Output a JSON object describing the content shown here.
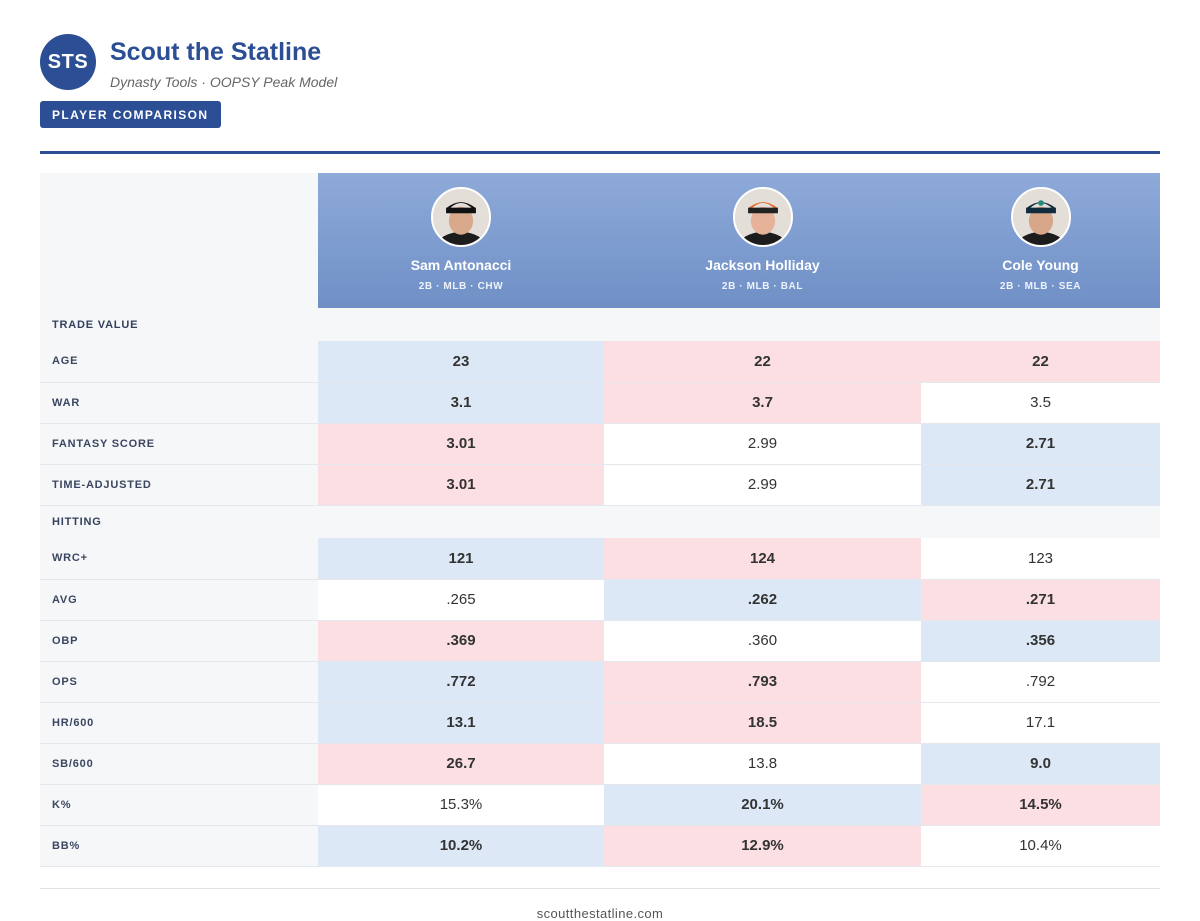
{
  "brand": {
    "logo_text": "STS",
    "title": "Scout the Statline",
    "subtitle": "Dynasty Tools · OOPSY Peak Model",
    "badge": "PLAYER COMPARISON"
  },
  "players": [
    {
      "name": "Sam Antonacci",
      "meta": "2B · MLB · CHW",
      "avatar": "player-headshot-icon"
    },
    {
      "name": "Jackson Holliday",
      "meta": "2B · MLB · BAL",
      "avatar": "player-headshot-icon"
    },
    {
      "name": "Cole Young",
      "meta": "2B · MLB · SEA",
      "avatar": "player-headshot-icon"
    }
  ],
  "sections": [
    {
      "title": "TRADE VALUE",
      "rows": [
        {
          "label": "AGE",
          "values": [
            "23",
            "22",
            "22"
          ],
          "tones": [
            "lo",
            "hi",
            "hi"
          ]
        },
        {
          "label": "WAR",
          "values": [
            "3.1",
            "3.7",
            "3.5"
          ],
          "tones": [
            "lo",
            "hi",
            "mid"
          ]
        },
        {
          "label": "FANTASY SCORE",
          "values": [
            "3.01",
            "2.99",
            "2.71"
          ],
          "tones": [
            "hi",
            "mid",
            "lo"
          ]
        },
        {
          "label": "TIME-ADJUSTED",
          "values": [
            "3.01",
            "2.99",
            "2.71"
          ],
          "tones": [
            "hi",
            "mid",
            "lo"
          ]
        }
      ]
    },
    {
      "title": "HITTING",
      "rows": [
        {
          "label": "WRC+",
          "values": [
            "121",
            "124",
            "123"
          ],
          "tones": [
            "lo",
            "hi",
            "mid"
          ]
        },
        {
          "label": "AVG",
          "values": [
            ".265",
            ".262",
            ".271"
          ],
          "tones": [
            "mid",
            "lo",
            "hi"
          ]
        },
        {
          "label": "OBP",
          "values": [
            ".369",
            ".360",
            ".356"
          ],
          "tones": [
            "hi",
            "mid",
            "lo"
          ]
        },
        {
          "label": "OPS",
          "values": [
            ".772",
            ".793",
            ".792"
          ],
          "tones": [
            "lo",
            "hi",
            "mid"
          ]
        },
        {
          "label": "HR/600",
          "values": [
            "13.1",
            "18.5",
            "17.1"
          ],
          "tones": [
            "lo",
            "hi",
            "mid"
          ]
        },
        {
          "label": "SB/600",
          "values": [
            "26.7",
            "13.8",
            "9.0"
          ],
          "tones": [
            "hi",
            "mid",
            "lo"
          ]
        },
        {
          "label": "K%",
          "values": [
            "15.3%",
            "20.1%",
            "14.5%"
          ],
          "tones": [
            "mid",
            "lo",
            "hi"
          ]
        },
        {
          "label": "BB%",
          "values": [
            "10.2%",
            "12.9%",
            "10.4%"
          ],
          "tones": [
            "lo",
            "hi",
            "mid"
          ]
        }
      ]
    }
  ],
  "colors": {
    "brand": "#2b4e95",
    "high_cell": "#fbdfe3",
    "low_cell": "#dce8f5"
  },
  "footer": "scoutthestatline.com"
}
